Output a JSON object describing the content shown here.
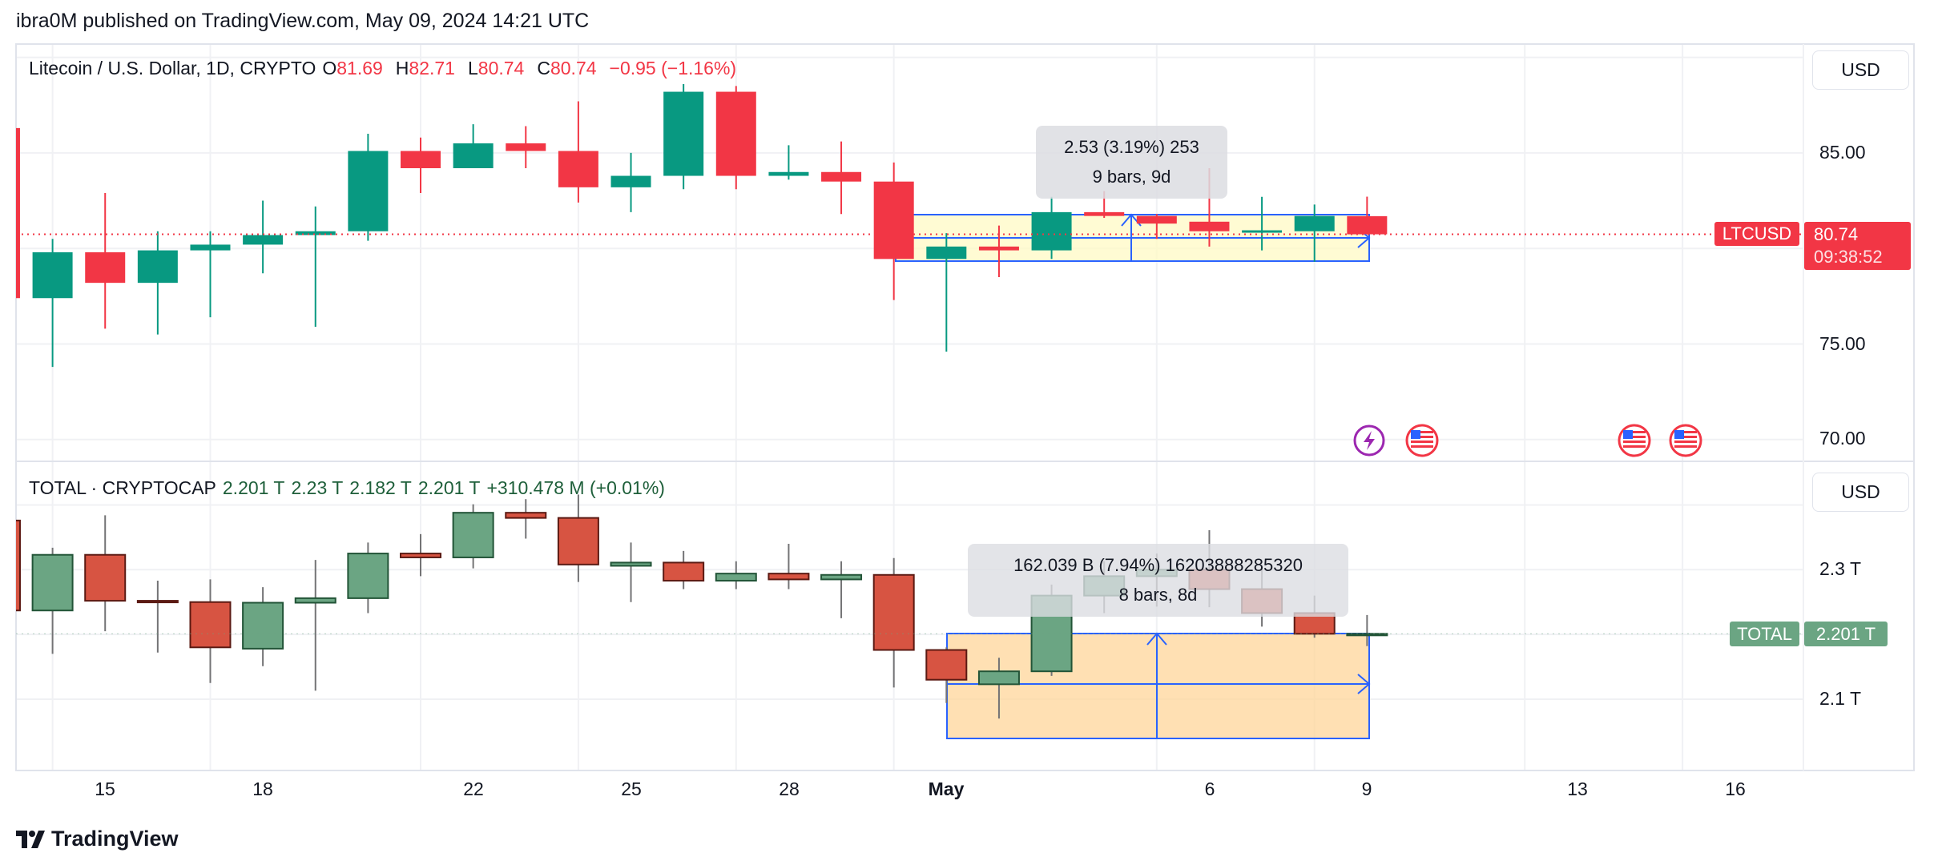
{
  "header": {
    "published": "ibra0M published on TradingView.com, May 09, 2024 14:21 UTC"
  },
  "ltc": {
    "title": "Litecoin / U.S. Dollar, 1D, CRYPTO",
    "o_label": "O",
    "o": "81.69",
    "h_label": "H",
    "h": "82.71",
    "l_label": "L",
    "l": "80.74",
    "c_label": "C",
    "c": "80.74",
    "change": "−0.95 (−1.16%)",
    "currency": "USD",
    "ticks": [
      "85.00",
      "75.00",
      "70.00"
    ],
    "symbol_tag": "LTCUSD",
    "last_price": "80.74",
    "countdown": "09:38:52",
    "measure": {
      "line1": "2.53 (3.19%) 253",
      "line2": "9 bars, 9d"
    },
    "candles": [
      {
        "d": "Apr 13",
        "o": 86.3,
        "h": 87.5,
        "l": 77.3,
        "c": 77.4
      },
      {
        "d": "Apr 14",
        "o": 77.4,
        "h": 80.5,
        "l": 73.8,
        "c": 79.8
      },
      {
        "d": "Apr 15",
        "o": 79.8,
        "h": 82.9,
        "l": 75.8,
        "c": 78.2
      },
      {
        "d": "Apr 16",
        "o": 78.2,
        "h": 80.9,
        "l": 75.5,
        "c": 79.9
      },
      {
        "d": "Apr 17",
        "o": 79.9,
        "h": 80.9,
        "l": 76.4,
        "c": 80.2
      },
      {
        "d": "Apr 18",
        "o": 80.2,
        "h": 82.5,
        "l": 78.7,
        "c": 80.7
      },
      {
        "d": "Apr 19",
        "o": 80.7,
        "h": 82.2,
        "l": 75.9,
        "c": 80.9
      },
      {
        "d": "Apr 20",
        "o": 80.9,
        "h": 86.0,
        "l": 80.4,
        "c": 85.1
      },
      {
        "d": "Apr 21",
        "o": 85.1,
        "h": 85.8,
        "l": 82.9,
        "c": 84.2
      },
      {
        "d": "Apr 22",
        "o": 84.2,
        "h": 86.5,
        "l": 84.2,
        "c": 85.5
      },
      {
        "d": "Apr 23",
        "o": 85.5,
        "h": 86.4,
        "l": 84.2,
        "c": 85.1
      },
      {
        "d": "Apr 24",
        "o": 85.1,
        "h": 87.7,
        "l": 82.4,
        "c": 83.2
      },
      {
        "d": "Apr 25",
        "o": 83.2,
        "h": 85.0,
        "l": 81.9,
        "c": 83.8
      },
      {
        "d": "Apr 26",
        "o": 83.8,
        "h": 88.6,
        "l": 83.1,
        "c": 88.2
      },
      {
        "d": "Apr 27",
        "o": 88.2,
        "h": 88.5,
        "l": 83.1,
        "c": 83.8
      },
      {
        "d": "Apr 28",
        "o": 83.8,
        "h": 85.4,
        "l": 83.6,
        "c": 84.0
      },
      {
        "d": "Apr 29",
        "o": 84.0,
        "h": 85.6,
        "l": 81.8,
        "c": 83.5
      },
      {
        "d": "Apr 30",
        "o": 83.5,
        "h": 84.5,
        "l": 77.3,
        "c": 79.45
      },
      {
        "d": "May 1",
        "o": 79.45,
        "h": 80.8,
        "l": 74.6,
        "c": 80.1
      },
      {
        "d": "May 2",
        "o": 80.1,
        "h": 81.2,
        "l": 78.5,
        "c": 79.9
      },
      {
        "d": "May 3",
        "o": 79.9,
        "h": 82.7,
        "l": 79.45,
        "c": 81.9
      },
      {
        "d": "May 4",
        "o": 81.9,
        "h": 83.0,
        "l": 81.6,
        "c": 81.7
      },
      {
        "d": "May 5",
        "o": 81.7,
        "h": 81.8,
        "l": 80.5,
        "c": 81.3
      },
      {
        "d": "May 6",
        "o": 81.4,
        "h": 84.2,
        "l": 80.1,
        "c": 80.9
      },
      {
        "d": "May 7",
        "o": 80.9,
        "h": 82.7,
        "l": 79.9,
        "c": 80.95
      },
      {
        "d": "May 8",
        "o": 80.9,
        "h": 82.3,
        "l": 79.3,
        "c": 81.7
      },
      {
        "d": "May 9",
        "o": 81.69,
        "h": 82.71,
        "l": 80.74,
        "c": 80.74
      }
    ]
  },
  "total": {
    "title": "TOTAL · CRYPTOCAP",
    "o": "2.201 T",
    "h": "2.23 T",
    "l": "2.182 T",
    "c": "2.201 T",
    "change": "+310.478 M (+0.01%)",
    "currency": "USD",
    "ticks": [
      "2.3 T",
      "2.1 T"
    ],
    "symbol_tag": "TOTAL",
    "last_value": "2.201 T",
    "measure": {
      "line1": "162.039 B (7.94%) 16203888285320",
      "line2": "8 bars, 8d"
    },
    "candles": [
      {
        "d": "Apr 13",
        "o": 2.376,
        "h": 2.38,
        "l": 2.236,
        "c": 2.237
      },
      {
        "d": "Apr 14",
        "o": 2.237,
        "h": 2.334,
        "l": 2.17,
        "c": 2.323
      },
      {
        "d": "Apr 15",
        "o": 2.323,
        "h": 2.384,
        "l": 2.205,
        "c": 2.252
      },
      {
        "d": "Apr 16",
        "o": 2.252,
        "h": 2.283,
        "l": 2.172,
        "c": 2.25
      },
      {
        "d": "Apr 17",
        "o": 2.25,
        "h": 2.285,
        "l": 2.125,
        "c": 2.18
      },
      {
        "d": "Apr 18",
        "o": 2.178,
        "h": 2.273,
        "l": 2.151,
        "c": 2.249
      },
      {
        "d": "Apr 19",
        "o": 2.249,
        "h": 2.315,
        "l": 2.113,
        "c": 2.256
      },
      {
        "d": "Apr 20",
        "o": 2.256,
        "h": 2.342,
        "l": 2.233,
        "c": 2.325
      },
      {
        "d": "Apr 21",
        "o": 2.325,
        "h": 2.355,
        "l": 2.29,
        "c": 2.319
      },
      {
        "d": "Apr 22",
        "o": 2.319,
        "h": 2.401,
        "l": 2.302,
        "c": 2.388
      },
      {
        "d": "Apr 23",
        "o": 2.388,
        "h": 2.409,
        "l": 2.348,
        "c": 2.38
      },
      {
        "d": "Apr 24",
        "o": 2.38,
        "h": 2.416,
        "l": 2.281,
        "c": 2.308
      },
      {
        "d": "Apr 25",
        "o": 2.306,
        "h": 2.342,
        "l": 2.25,
        "c": 2.311
      },
      {
        "d": "Apr 26",
        "o": 2.311,
        "h": 2.329,
        "l": 2.27,
        "c": 2.283
      },
      {
        "d": "Apr 27",
        "o": 2.283,
        "h": 2.313,
        "l": 2.27,
        "c": 2.294
      },
      {
        "d": "Apr 28",
        "o": 2.294,
        "h": 2.34,
        "l": 2.27,
        "c": 2.285
      },
      {
        "d": "Apr 29",
        "o": 2.285,
        "h": 2.313,
        "l": 2.225,
        "c": 2.292
      },
      {
        "d": "Apr 30",
        "o": 2.292,
        "h": 2.318,
        "l": 2.118,
        "c": 2.176
      },
      {
        "d": "May 1",
        "o": 2.176,
        "h": 2.18,
        "l": 2.094,
        "c": 2.13
      },
      {
        "d": "May 2",
        "o": 2.123,
        "h": 2.164,
        "l": 2.07,
        "c": 2.143
      },
      {
        "d": "May 3",
        "o": 2.143,
        "h": 2.277,
        "l": 2.136,
        "c": 2.26
      },
      {
        "d": "May 4",
        "o": 2.26,
        "h": 2.313,
        "l": 2.233,
        "c": 2.29
      },
      {
        "d": "May 5",
        "o": 2.29,
        "h": 2.325,
        "l": 2.243,
        "c": 2.3
      },
      {
        "d": "May 6",
        "o": 2.3,
        "h": 2.361,
        "l": 2.242,
        "c": 2.27
      },
      {
        "d": "May 7",
        "o": 2.27,
        "h": 2.302,
        "l": 2.212,
        "c": 2.233
      },
      {
        "d": "May 8",
        "o": 2.233,
        "h": 2.26,
        "l": 2.195,
        "c": 2.201
      },
      {
        "d": "May 9",
        "o": 2.201,
        "h": 2.23,
        "l": 2.182,
        "c": 2.201
      }
    ]
  },
  "time_axis": [
    "15",
    "18",
    "22",
    "25",
    "28",
    "May",
    "6",
    "9",
    "13",
    "16"
  ],
  "events": [
    "lightning-icon",
    "us-flag-icon",
    "us-flag-icon",
    "us-flag-icon"
  ],
  "brand": {
    "name": "TradingView"
  },
  "colors": {
    "ltc_up": "#089981",
    "ltc_down": "#f23645",
    "tot_up": "#6ba583",
    "tot_down": "#d75442",
    "measure_line": "#2962ff",
    "ltc_measure_fill": "#fff9c4",
    "tot_measure_fill": "#ffd59a"
  }
}
